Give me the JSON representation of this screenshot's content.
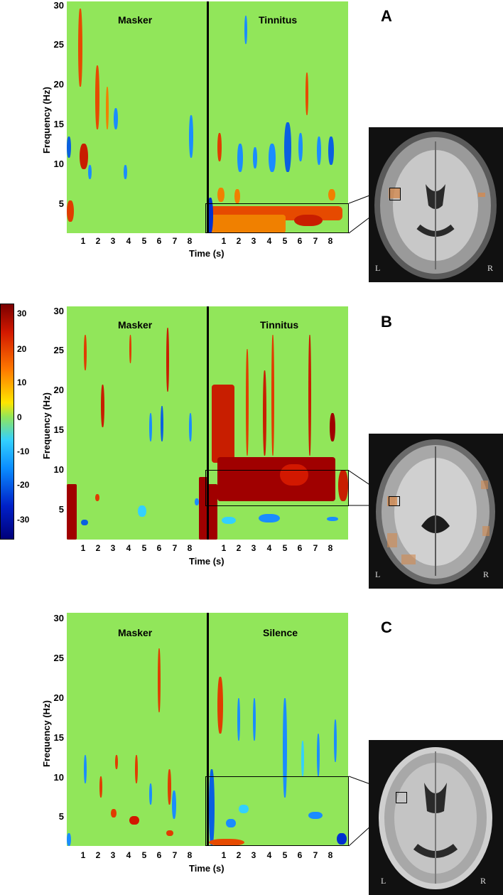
{
  "colorbar": {
    "ticks": [
      "30",
      "20",
      "10",
      "0",
      "-10",
      "-20",
      "-30"
    ]
  },
  "panels": [
    {
      "letter": "A",
      "left_label": "Masker",
      "right_label": "Tinnitus",
      "ylabel": "Frequency (Hz)",
      "xlabel": "Time (s)",
      "yticks": [
        "30",
        "25",
        "20",
        "15",
        "10",
        "5"
      ],
      "xticks": [
        "1",
        "2",
        "3",
        "4",
        "5",
        "6",
        "7",
        "8",
        "1",
        "2",
        "3",
        "4",
        "5",
        "6",
        "7",
        "8"
      ],
      "brain_left": "L",
      "brain_right": "R"
    },
    {
      "letter": "B",
      "left_label": "Masker",
      "right_label": "Tinnitus",
      "ylabel": "Frequency (Hz)",
      "xlabel": "Time (s)",
      "yticks": [
        "30",
        "25",
        "20",
        "15",
        "10",
        "5"
      ],
      "xticks": [
        "1",
        "2",
        "3",
        "4",
        "5",
        "6",
        "7",
        "8",
        "1",
        "2",
        "3",
        "4",
        "5",
        "6",
        "7",
        "8"
      ],
      "brain_left": "L",
      "brain_right": "R"
    },
    {
      "letter": "C",
      "left_label": "Masker",
      "right_label": "Silence",
      "ylabel": "Frequency (Hz)",
      "xlabel": "Time (s)",
      "yticks": [
        "30",
        "25",
        "20",
        "15",
        "10",
        "5"
      ],
      "xticks": [
        "1",
        "2",
        "3",
        "4",
        "5",
        "6",
        "7",
        "8",
        "1",
        "2",
        "3",
        "4",
        "5",
        "6",
        "7",
        "8"
      ],
      "brain_left": "L",
      "brain_right": "R"
    }
  ],
  "colors": {
    "background_green": "#91e65a",
    "positive_dark": "#a00000",
    "positive": "#e03c00",
    "orange": "#ff8a00",
    "negative": "#1a8cff",
    "negative_dark": "#0030d0"
  }
}
